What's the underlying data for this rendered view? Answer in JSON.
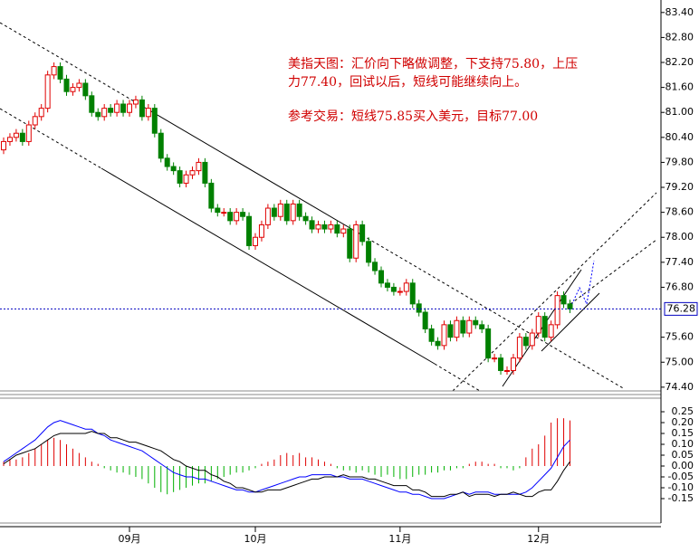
{
  "chart_data": [
    {
      "type": "candlestick",
      "annotations": [
        "美指天图：汇价向下略做调整，下支持75.80，上压",
        "力77.40，回试以后，短线可能继续向上。",
        "参考交易：短线75.85买入美元，目标77.00"
      ],
      "up_color": "#e00000",
      "down_color": "#008000",
      "open": [
        80.1,
        80.3,
        80.4,
        80.5,
        80.3,
        80.7,
        80.9,
        81.1,
        81.9,
        82.1,
        81.8,
        81.5,
        81.6,
        81.7,
        81.4,
        81.0,
        80.9,
        81.1,
        81.0,
        81.2,
        81.0,
        81.2,
        81.3,
        80.9,
        81.1,
        80.5,
        79.9,
        79.7,
        79.6,
        79.3,
        79.5,
        79.6,
        79.8,
        79.3,
        78.7,
        78.6,
        78.6,
        78.4,
        78.6,
        78.5,
        77.8,
        78.0,
        78.3,
        78.7,
        78.5,
        78.8,
        78.4,
        78.8,
        78.5,
        78.4,
        78.2,
        78.3,
        78.2,
        78.3,
        78.1,
        78.2,
        77.5,
        78.3,
        77.9,
        77.4,
        77.2,
        76.9,
        76.8,
        76.7,
        76.7,
        76.9,
        76.4,
        76.2,
        75.8,
        75.5,
        75.4,
        75.9,
        75.6,
        76.0,
        75.7,
        76.0,
        75.9,
        75.8,
        75.1,
        75.1,
        74.8,
        74.8,
        75.1,
        75.6,
        75.4,
        75.7,
        76.1,
        75.6,
        75.9,
        76.6,
        76.4
      ],
      "high": [
        80.4,
        80.5,
        80.6,
        80.6,
        80.8,
        81.0,
        81.2,
        82.0,
        82.2,
        82.2,
        81.9,
        81.7,
        81.8,
        81.8,
        81.5,
        81.1,
        81.2,
        81.2,
        81.3,
        81.3,
        81.3,
        81.4,
        81.4,
        81.2,
        81.2,
        80.6,
        80.0,
        79.8,
        79.7,
        79.6,
        79.7,
        79.9,
        79.9,
        79.4,
        78.8,
        78.7,
        78.7,
        78.7,
        78.7,
        78.6,
        78.1,
        78.4,
        78.8,
        78.8,
        78.9,
        78.9,
        78.9,
        78.9,
        78.6,
        78.5,
        78.4,
        78.4,
        78.4,
        78.4,
        78.3,
        78.3,
        78.4,
        78.4,
        78.0,
        77.5,
        77.3,
        77.0,
        76.9,
        76.8,
        77.0,
        77.0,
        76.5,
        76.3,
        75.9,
        75.6,
        76.0,
        76.0,
        76.1,
        76.1,
        76.1,
        76.1,
        76.0,
        75.9,
        75.2,
        75.2,
        74.9,
        75.2,
        75.7,
        75.7,
        75.8,
        76.2,
        76.2,
        76.0,
        76.7,
        76.7,
        76.5
      ],
      "low": [
        80.0,
        80.2,
        80.3,
        80.2,
        80.2,
        80.6,
        80.8,
        81.0,
        81.8,
        81.7,
        81.4,
        81.4,
        81.5,
        81.3,
        80.9,
        80.8,
        80.8,
        80.9,
        80.9,
        80.9,
        80.9,
        81.1,
        80.8,
        80.8,
        80.4,
        79.8,
        79.6,
        79.5,
        79.2,
        79.2,
        79.4,
        79.5,
        79.2,
        78.6,
        78.5,
        78.5,
        78.3,
        78.3,
        78.4,
        77.7,
        77.7,
        77.9,
        78.2,
        78.4,
        78.4,
        78.3,
        78.3,
        78.4,
        78.3,
        78.1,
        78.1,
        78.1,
        78.1,
        78.0,
        78.0,
        77.4,
        77.4,
        77.8,
        77.3,
        77.1,
        76.8,
        76.7,
        76.6,
        76.6,
        76.6,
        76.3,
        76.1,
        75.7,
        75.4,
        75.3,
        75.3,
        75.5,
        75.5,
        75.6,
        75.6,
        75.8,
        75.7,
        75.0,
        75.0,
        74.7,
        74.7,
        74.7,
        75.0,
        75.3,
        75.3,
        75.6,
        75.5,
        75.5,
        75.8,
        76.3,
        76.18
      ],
      "close": [
        80.3,
        80.4,
        80.5,
        80.3,
        80.7,
        80.9,
        81.1,
        81.9,
        82.1,
        81.8,
        81.5,
        81.6,
        81.7,
        81.4,
        81.0,
        80.9,
        81.1,
        81.0,
        81.2,
        81.0,
        81.2,
        81.3,
        80.9,
        81.1,
        80.5,
        79.9,
        79.7,
        79.6,
        79.3,
        79.5,
        79.6,
        79.8,
        79.3,
        78.7,
        78.6,
        78.6,
        78.4,
        78.6,
        78.5,
        77.8,
        78.0,
        78.3,
        78.7,
        78.5,
        78.8,
        78.4,
        78.8,
        78.5,
        78.4,
        78.2,
        78.3,
        78.2,
        78.3,
        78.1,
        78.2,
        77.5,
        78.3,
        77.9,
        77.4,
        77.2,
        76.9,
        76.8,
        76.7,
        76.7,
        76.9,
        76.4,
        76.2,
        75.8,
        75.5,
        75.4,
        75.9,
        75.6,
        76.0,
        75.7,
        76.0,
        75.9,
        75.8,
        75.1,
        75.1,
        74.8,
        74.8,
        75.1,
        75.6,
        75.4,
        75.7,
        76.1,
        75.6,
        75.9,
        76.6,
        76.4,
        76.28
      ],
      "last_price": 76.28,
      "ylim": [
        74.31,
        83.7
      ],
      "yticks": [
        {
          "value": 83.4,
          "label": "83.40"
        },
        {
          "value": 82.8,
          "label": "82.80"
        },
        {
          "value": 82.2,
          "label": "82.20"
        },
        {
          "value": 81.6,
          "label": "81.60"
        },
        {
          "value": 81,
          "label": "81.00"
        },
        {
          "value": 80.4,
          "label": "80.40"
        },
        {
          "value": 79.8,
          "label": "79.80"
        },
        {
          "value": 79.2,
          "label": "79.20"
        },
        {
          "value": 78.6,
          "label": "78.60"
        },
        {
          "value": 78,
          "label": "78.00"
        },
        {
          "value": 77.4,
          "label": "77.40"
        },
        {
          "value": 76.8,
          "label": "76.80"
        },
        {
          "value": 75.6,
          "label": "75.60"
        },
        {
          "value": 75,
          "label": "75.00"
        },
        {
          "value": 74.4,
          "label": "74.40"
        }
      ]
    },
    {
      "type": "macd",
      "categories": [
        null,
        null,
        null,
        null,
        null,
        null,
        null,
        null,
        null,
        null,
        null,
        null,
        null,
        null,
        null,
        null,
        null,
        null,
        null,
        null,
        "09月",
        null,
        null,
        null,
        null,
        null,
        null,
        null,
        null,
        null,
        null,
        null,
        null,
        null,
        null,
        null,
        null,
        null,
        null,
        null,
        "10月",
        null,
        null,
        null,
        null,
        null,
        null,
        null,
        null,
        null,
        null,
        null,
        null,
        null,
        null,
        null,
        null,
        null,
        null,
        null,
        null,
        null,
        null,
        "11月",
        null,
        null,
        null,
        null,
        null,
        null,
        null,
        null,
        null,
        null,
        null,
        null,
        null,
        null,
        null,
        null,
        null,
        null,
        null,
        null,
        null,
        "12月",
        null,
        null,
        null,
        null,
        null
      ],
      "bars": {
        "up_color": "#e00000",
        "down_color": "#00b000",
        "values": [
          0.02,
          0.03,
          0.03,
          0.04,
          0.06,
          0.08,
          0.1,
          0.12,
          0.13,
          0.12,
          0.1,
          0.08,
          0.06,
          0.04,
          0.02,
          0.01,
          -0.01,
          -0.02,
          -0.03,
          -0.03,
          -0.04,
          -0.05,
          -0.06,
          -0.08,
          -0.1,
          -0.12,
          -0.13,
          -0.12,
          -0.11,
          -0.1,
          -0.09,
          -0.08,
          -0.08,
          -0.07,
          -0.06,
          -0.05,
          -0.04,
          -0.03,
          -0.03,
          -0.02,
          -0.01,
          0.01,
          0.02,
          0.03,
          0.05,
          0.06,
          0.05,
          0.06,
          0.04,
          0.04,
          0.03,
          0.02,
          0.01,
          -0.01,
          -0.02,
          -0.02,
          -0.03,
          -0.02,
          -0.03,
          -0.04,
          -0.05,
          -0.04,
          -0.05,
          -0.06,
          -0.06,
          -0.05,
          -0.04,
          -0.04,
          -0.03,
          -0.03,
          -0.02,
          -0.02,
          -0.01,
          -0.01,
          0.01,
          0.02,
          0.02,
          0.01,
          0.01,
          -0.01,
          -0.01,
          -0.02,
          -0.01,
          0.04,
          0.08,
          0.1,
          0.14,
          0.2,
          0.22,
          0.22,
          0.21
        ]
      },
      "series": [
        {
          "color": "#0000ff",
          "values": [
            0.02,
            0.04,
            0.06,
            0.08,
            0.1,
            0.12,
            0.15,
            0.18,
            0.2,
            0.21,
            0.2,
            0.19,
            0.18,
            0.17,
            0.17,
            0.15,
            0.14,
            0.12,
            0.11,
            0.1,
            0.09,
            0.08,
            0.07,
            0.05,
            0.03,
            0.01,
            -0.01,
            -0.03,
            -0.04,
            -0.05,
            -0.05,
            -0.06,
            -0.06,
            -0.07,
            -0.08,
            -0.09,
            -0.1,
            -0.11,
            -0.11,
            -0.12,
            -0.12,
            -0.11,
            -0.1,
            -0.09,
            -0.08,
            -0.07,
            -0.06,
            -0.05,
            -0.05,
            -0.04,
            -0.04,
            -0.04,
            -0.04,
            -0.05,
            -0.05,
            -0.06,
            -0.06,
            -0.06,
            -0.07,
            -0.08,
            -0.09,
            -0.1,
            -0.11,
            -0.12,
            -0.12,
            -0.13,
            -0.13,
            -0.14,
            -0.15,
            -0.15,
            -0.15,
            -0.14,
            -0.13,
            -0.12,
            -0.13,
            -0.12,
            -0.12,
            -0.12,
            -0.13,
            -0.13,
            -0.13,
            -0.13,
            -0.13,
            -0.12,
            -0.1,
            -0.07,
            -0.04,
            -0.01,
            0.04,
            0.09,
            0.12
          ]
        },
        {
          "color": "#000000",
          "values": [
            0.01,
            0.03,
            0.05,
            0.06,
            0.07,
            0.08,
            0.1,
            0.12,
            0.14,
            0.15,
            0.15,
            0.15,
            0.15,
            0.15,
            0.16,
            0.15,
            0.15,
            0.13,
            0.13,
            0.12,
            0.11,
            0.11,
            0.1,
            0.09,
            0.08,
            0.07,
            0.05,
            0.03,
            0.02,
            0.0,
            -0.01,
            -0.02,
            -0.02,
            -0.04,
            -0.05,
            -0.07,
            -0.08,
            -0.1,
            -0.1,
            -0.11,
            -0.12,
            -0.12,
            -0.11,
            -0.11,
            -0.11,
            -0.1,
            -0.09,
            -0.08,
            -0.07,
            -0.06,
            -0.06,
            -0.05,
            -0.05,
            -0.05,
            -0.04,
            -0.05,
            -0.05,
            -0.05,
            -0.06,
            -0.06,
            -0.07,
            -0.08,
            -0.09,
            -0.09,
            -0.09,
            -0.11,
            -0.11,
            -0.12,
            -0.14,
            -0.14,
            -0.14,
            -0.13,
            -0.13,
            -0.12,
            -0.14,
            -0.13,
            -0.13,
            -0.13,
            -0.14,
            -0.13,
            -0.13,
            -0.12,
            -0.13,
            -0.14,
            -0.14,
            -0.12,
            -0.11,
            -0.11,
            -0.07,
            -0.02,
            0.02
          ]
        }
      ],
      "ylim": [
        -0.2375,
        0.3125
      ],
      "yticks": [
        0.25,
        {
          "value": 0.2,
          "label": "0.20"
        },
        0.15,
        {
          "value": 0.1,
          "label": "0.10"
        },
        0.05,
        {
          "value": 0,
          "label": "0.00"
        },
        -0.05,
        {
          "value": -0.1,
          "label": "-0.10"
        },
        -0.15
      ]
    }
  ]
}
